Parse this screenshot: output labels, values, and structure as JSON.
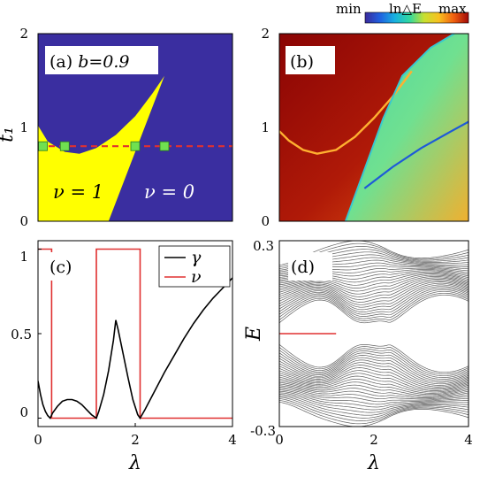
{
  "colorbar": {
    "min_label": "min",
    "label": "ln△E",
    "max_label": "max",
    "stops": [
      "#3a2a9c",
      "#2060e0",
      "#18b0e0",
      "#30d8a0",
      "#c8e030",
      "#f8c020",
      "#f06010",
      "#a00808"
    ]
  },
  "colors": {
    "yellow": "#ffff00",
    "navy": "#3a2ea0",
    "red": "#e03030",
    "green": "#70e050",
    "dark_red": "#a00a06",
    "gray": "#606060"
  },
  "chart_data": [
    {
      "id": "a",
      "type": "heatmap",
      "panel_label": "(a)",
      "parameter_label": "b=0.9",
      "xlabel": "",
      "ylabel": "t₁",
      "xlim": [
        0,
        4
      ],
      "ylim": [
        0,
        2
      ],
      "x_ticks": [],
      "y_ticks": [
        0,
        1,
        2
      ],
      "regions": [
        {
          "text": "ν = 1",
          "value": 1,
          "color": "#ffff00",
          "boundary_lower": [
            [
              0,
              1.02
            ],
            [
              0.2,
              0.85
            ],
            [
              0.55,
              0.74
            ],
            [
              0.85,
              0.72
            ],
            [
              1.2,
              0.78
            ],
            [
              1.6,
              0.92
            ],
            [
              2.0,
              1.12
            ],
            [
              2.35,
              1.36
            ],
            [
              2.6,
              1.55
            ]
          ],
          "boundary_right_line": [
            [
              1.45,
              0
            ],
            [
              2.6,
              1.55
            ]
          ]
        },
        {
          "text": "ν = 0",
          "value": 0,
          "color": "#3a2ea0"
        }
      ],
      "dashed_line": {
        "t1": 0.8,
        "color": "#e03030"
      },
      "markers": [
        {
          "x": 0.1,
          "y": 0.8
        },
        {
          "x": 0.55,
          "y": 0.8
        },
        {
          "x": 2.0,
          "y": 0.8
        },
        {
          "x": 2.6,
          "y": 0.8
        }
      ]
    },
    {
      "id": "b",
      "type": "heatmap",
      "panel_label": "(b)",
      "xlabel": "",
      "ylabel": "",
      "xlim": [
        0,
        4
      ],
      "ylim": [
        0,
        2
      ],
      "x_ticks": [],
      "y_ticks": [
        0,
        1,
        2
      ],
      "orange_curve": [
        [
          0,
          0.96
        ],
        [
          0.2,
          0.86
        ],
        [
          0.5,
          0.76
        ],
        [
          0.8,
          0.72
        ],
        [
          1.2,
          0.76
        ],
        [
          1.6,
          0.9
        ],
        [
          2.0,
          1.1
        ],
        [
          2.4,
          1.33
        ],
        [
          2.8,
          1.6
        ]
      ],
      "phase_boundary": [
        [
          1.4,
          0
        ],
        [
          1.8,
          0.55
        ],
        [
          2.2,
          1.1
        ],
        [
          2.6,
          1.55
        ],
        [
          3.2,
          1.85
        ],
        [
          3.7,
          2.0
        ]
      ],
      "blue_line": [
        [
          1.8,
          0.35
        ],
        [
          2.4,
          0.58
        ],
        [
          3.0,
          0.78
        ],
        [
          3.6,
          0.95
        ],
        [
          4.0,
          1.06
        ]
      ]
    },
    {
      "id": "c",
      "type": "line",
      "panel_label": "(c)",
      "xlabel": "λ",
      "ylabel": "",
      "xlim": [
        0,
        4
      ],
      "ylim": [
        -0.05,
        1.05
      ],
      "x_ticks": [
        0,
        2,
        4
      ],
      "y_ticks": [
        0,
        0.5,
        1
      ],
      "series": [
        {
          "name": "γ",
          "color": "#000000",
          "x": [
            0.0,
            0.05,
            0.1,
            0.15,
            0.2,
            0.25,
            0.3,
            0.4,
            0.5,
            0.6,
            0.7,
            0.8,
            0.9,
            1.0,
            1.1,
            1.2,
            1.25,
            1.35,
            1.45,
            1.55,
            1.6,
            1.65,
            1.75,
            1.85,
            1.95,
            2.05,
            2.1,
            2.2,
            2.4,
            2.6,
            2.8,
            3.0,
            3.2,
            3.4,
            3.6,
            3.8,
            4.0
          ],
          "values": [
            0.22,
            0.14,
            0.08,
            0.04,
            0.015,
            0.0,
            0.03,
            0.07,
            0.1,
            0.11,
            0.11,
            0.1,
            0.08,
            0.05,
            0.02,
            0.0,
            0.04,
            0.14,
            0.28,
            0.46,
            0.58,
            0.52,
            0.38,
            0.24,
            0.11,
            0.02,
            0.0,
            0.05,
            0.16,
            0.27,
            0.37,
            0.47,
            0.56,
            0.64,
            0.71,
            0.77,
            0.83
          ]
        },
        {
          "name": "ν",
          "color": "#e03030",
          "x": [
            0.0,
            0.28,
            0.28,
            1.2,
            1.2,
            2.1,
            2.1,
            4.0
          ],
          "values": [
            1,
            1,
            0,
            0,
            1,
            1,
            0,
            0
          ]
        }
      ]
    },
    {
      "id": "d",
      "type": "line",
      "panel_label": "(d)",
      "xlabel": "λ",
      "ylabel": "E",
      "xlim": [
        0,
        4
      ],
      "ylim": [
        -0.3,
        0.3
      ],
      "x_ticks": [
        0,
        2,
        4
      ],
      "y_ticks": [
        -0.3,
        0.3
      ],
      "zero_mode": {
        "E": 0.0,
        "x_range": [
          0,
          1.2
        ],
        "color": "#e03030"
      }
    }
  ],
  "tick_text": {
    "t0": "0",
    "t1": "1",
    "t2": "2",
    "t4": "4",
    "t05": "0.5",
    "tm03": "-0.3",
    "tp03": "0.3"
  }
}
